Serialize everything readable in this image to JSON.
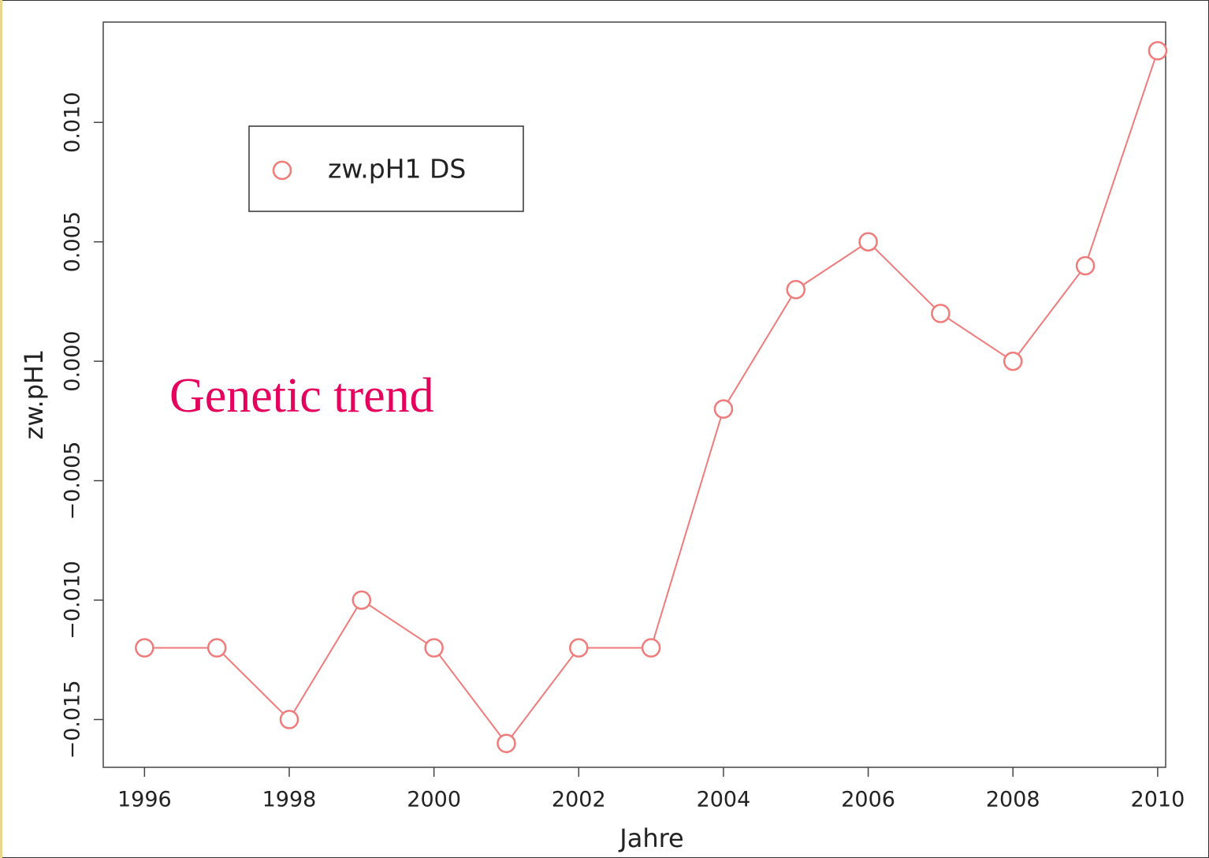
{
  "chart_data": {
    "type": "line",
    "y_label": "zw.pH1",
    "x_label": "Jahre",
    "x": [
      1996,
      1997,
      1998,
      1999,
      2000,
      2001,
      2002,
      2003,
      2004,
      2005,
      2006,
      2007,
      2008,
      2009,
      2010
    ],
    "series": [
      {
        "name": "zw.pH1 DS",
        "color": "#ef7b7b",
        "values": [
          -0.012,
          -0.012,
          -0.015,
          -0.01,
          -0.012,
          -0.016,
          -0.012,
          -0.012,
          -0.002,
          0.003,
          0.005,
          0.002,
          0.0,
          0.004,
          0.013
        ]
      }
    ],
    "xlim": [
      1995.43,
      2010.11
    ],
    "ylim": [
      -0.017,
      0.0142
    ],
    "xticks": [
      1996,
      1998,
      2000,
      2002,
      2004,
      2006,
      2008,
      2010
    ],
    "yticks": [
      {
        "value": -0.015,
        "label": "−0.015"
      },
      {
        "value": -0.01,
        "label": "−0.010"
      },
      {
        "value": -0.005,
        "label": "−0.005"
      },
      {
        "value": 0.0,
        "label": "0.000"
      },
      {
        "value": 0.005,
        "label": "0.005"
      },
      {
        "value": 0.01,
        "label": "0.010"
      }
    ],
    "legend": "top-left",
    "annotations": [
      {
        "text": "Genetic trend",
        "color": "#e5005e"
      }
    ]
  }
}
